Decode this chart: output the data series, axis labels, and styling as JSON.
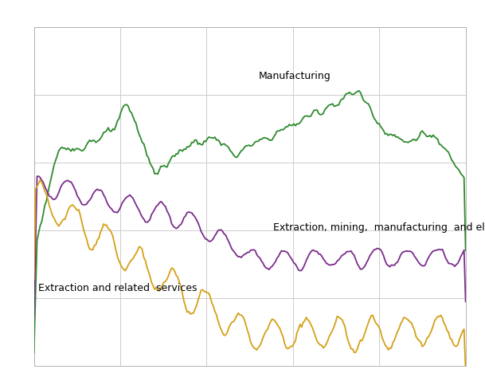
{
  "background_color": "#ffffff",
  "plot_bg_color": "#ffffff",
  "grid_color": "#cccccc",
  "line_width": 1.3,
  "annotation_fontsize": 9,
  "series": {
    "manufacturing": {
      "label": "Manufacturing",
      "color": "#2e8b2e"
    },
    "extraction_mining": {
      "label": "Extraction, mining,  manufacturing  and elec.",
      "color": "#7b2d8b"
    },
    "extraction_services": {
      "label": "Extraction and related  services",
      "color": "#d4a017"
    }
  },
  "ylim": [
    40,
    185
  ],
  "n_points": 280
}
